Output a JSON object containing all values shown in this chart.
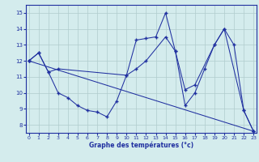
{
  "xlabel": "Graphe des températures (°c)",
  "background_color": "#d4eced",
  "line_color": "#2030a0",
  "grid_color": "#b0cccc",
  "series1": {
    "x": [
      0,
      1,
      2,
      3,
      4,
      5,
      6,
      7,
      8,
      9,
      10,
      11,
      12,
      13,
      14,
      15,
      16,
      17,
      18,
      19,
      20,
      21,
      22,
      23
    ],
    "y": [
      12.0,
      12.5,
      11.3,
      10.0,
      9.7,
      9.2,
      8.9,
      8.8,
      8.5,
      9.5,
      11.1,
      13.3,
      13.4,
      13.5,
      15.0,
      12.6,
      9.2,
      10.0,
      11.5,
      13.0,
      14.0,
      13.0,
      8.9,
      7.6
    ]
  },
  "series2": {
    "x": [
      0,
      1,
      2,
      3,
      10,
      11,
      12,
      14,
      15,
      16,
      17,
      19,
      20,
      22,
      23
    ],
    "y": [
      12.0,
      12.5,
      11.3,
      11.5,
      11.1,
      11.5,
      12.0,
      13.5,
      12.6,
      10.2,
      10.5,
      13.0,
      14.0,
      8.9,
      7.6
    ]
  },
  "series3": {
    "x": [
      0,
      23
    ],
    "y": [
      12.0,
      7.6
    ]
  },
  "series4": {
    "x": [
      3,
      4,
      5,
      6,
      7,
      8,
      9,
      10
    ],
    "y": [
      10.0,
      9.7,
      9.2,
      8.9,
      8.8,
      8.5,
      9.5,
      11.1
    ]
  },
  "xlim": [
    -0.3,
    23.3
  ],
  "ylim": [
    7.5,
    15.5
  ],
  "yticks": [
    8,
    9,
    10,
    11,
    12,
    13,
    14,
    15
  ],
  "xticks": [
    0,
    1,
    2,
    3,
    4,
    5,
    6,
    7,
    8,
    9,
    10,
    11,
    12,
    13,
    14,
    15,
    16,
    17,
    18,
    19,
    20,
    21,
    22,
    23
  ]
}
